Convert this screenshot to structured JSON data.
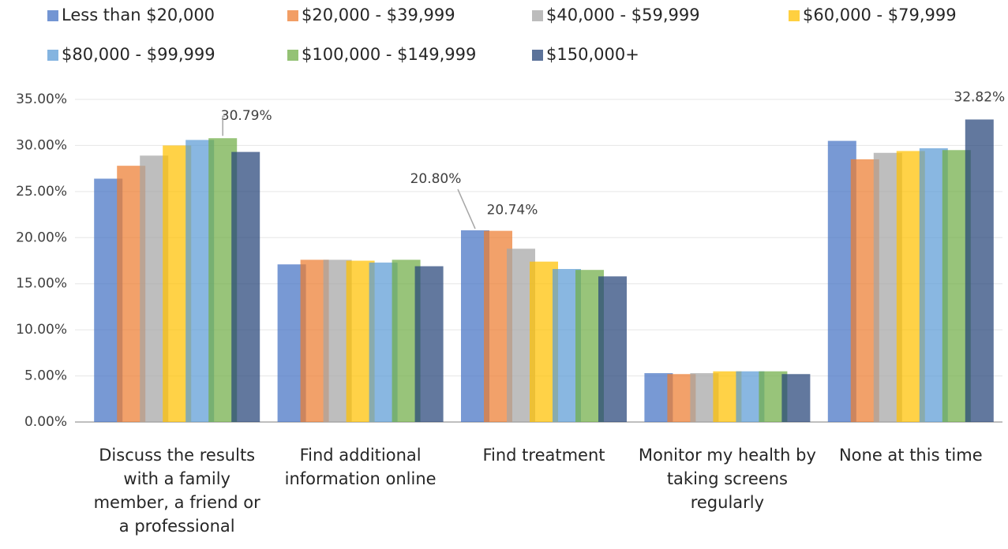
{
  "chart_data": {
    "type": "bar",
    "categories": [
      "Discuss the results with a family member, a friend or a professional",
      "Find additional information online",
      "Find treatment",
      "Monitor my health by taking screens regularly",
      "None at this time"
    ],
    "series": [
      {
        "name": "Less than $20,000",
        "color": "#4472c4",
        "values": [
          26.4,
          17.1,
          20.8,
          5.3,
          30.5
        ],
        "value_labels": [
          null,
          null,
          "20.80%",
          null,
          null
        ]
      },
      {
        "name": "$20,000 - $39,999",
        "color": "#ed7d31",
        "values": [
          27.8,
          17.6,
          20.74,
          5.2,
          28.5
        ],
        "value_labels": [
          null,
          null,
          "20.74%",
          null,
          null
        ]
      },
      {
        "name": "$40,000 - $59,999",
        "color": "#a5a5a5",
        "values": [
          28.9,
          17.6,
          18.8,
          5.3,
          29.2
        ]
      },
      {
        "name": "$60,000 - $79,999",
        "color": "#ffc000",
        "values": [
          30.0,
          17.5,
          17.4,
          5.5,
          29.4
        ]
      },
      {
        "name": "$80,000 - $99,999",
        "color": "#5b9bd5",
        "values": [
          30.6,
          17.3,
          16.6,
          5.5,
          29.7
        ]
      },
      {
        "name": "$100,000 - $149,999",
        "color": "#70ad47",
        "values": [
          30.79,
          17.6,
          16.5,
          5.5,
          29.5
        ],
        "value_labels": [
          "30.79%",
          null,
          null,
          null,
          null
        ]
      },
      {
        "name": "$150,000+",
        "color": "#264478",
        "values": [
          29.3,
          16.9,
          15.8,
          5.2,
          32.82
        ],
        "value_labels": [
          null,
          null,
          null,
          null,
          "32.82%"
        ]
      }
    ],
    "ylim": [
      0,
      35
    ],
    "yticks": [
      {
        "value": 0,
        "label": "0.00%"
      },
      {
        "value": 5,
        "label": "5.00%"
      },
      {
        "value": 10,
        "label": "10.00%"
      },
      {
        "value": 15,
        "label": "15.00%"
      },
      {
        "value": 20,
        "label": "20.00%"
      },
      {
        "value": 25,
        "label": "25.00%"
      },
      {
        "value": 30,
        "label": "30.00%"
      },
      {
        "value": 35,
        "label": "35.00%"
      }
    ],
    "grid": true,
    "legend": "top"
  }
}
